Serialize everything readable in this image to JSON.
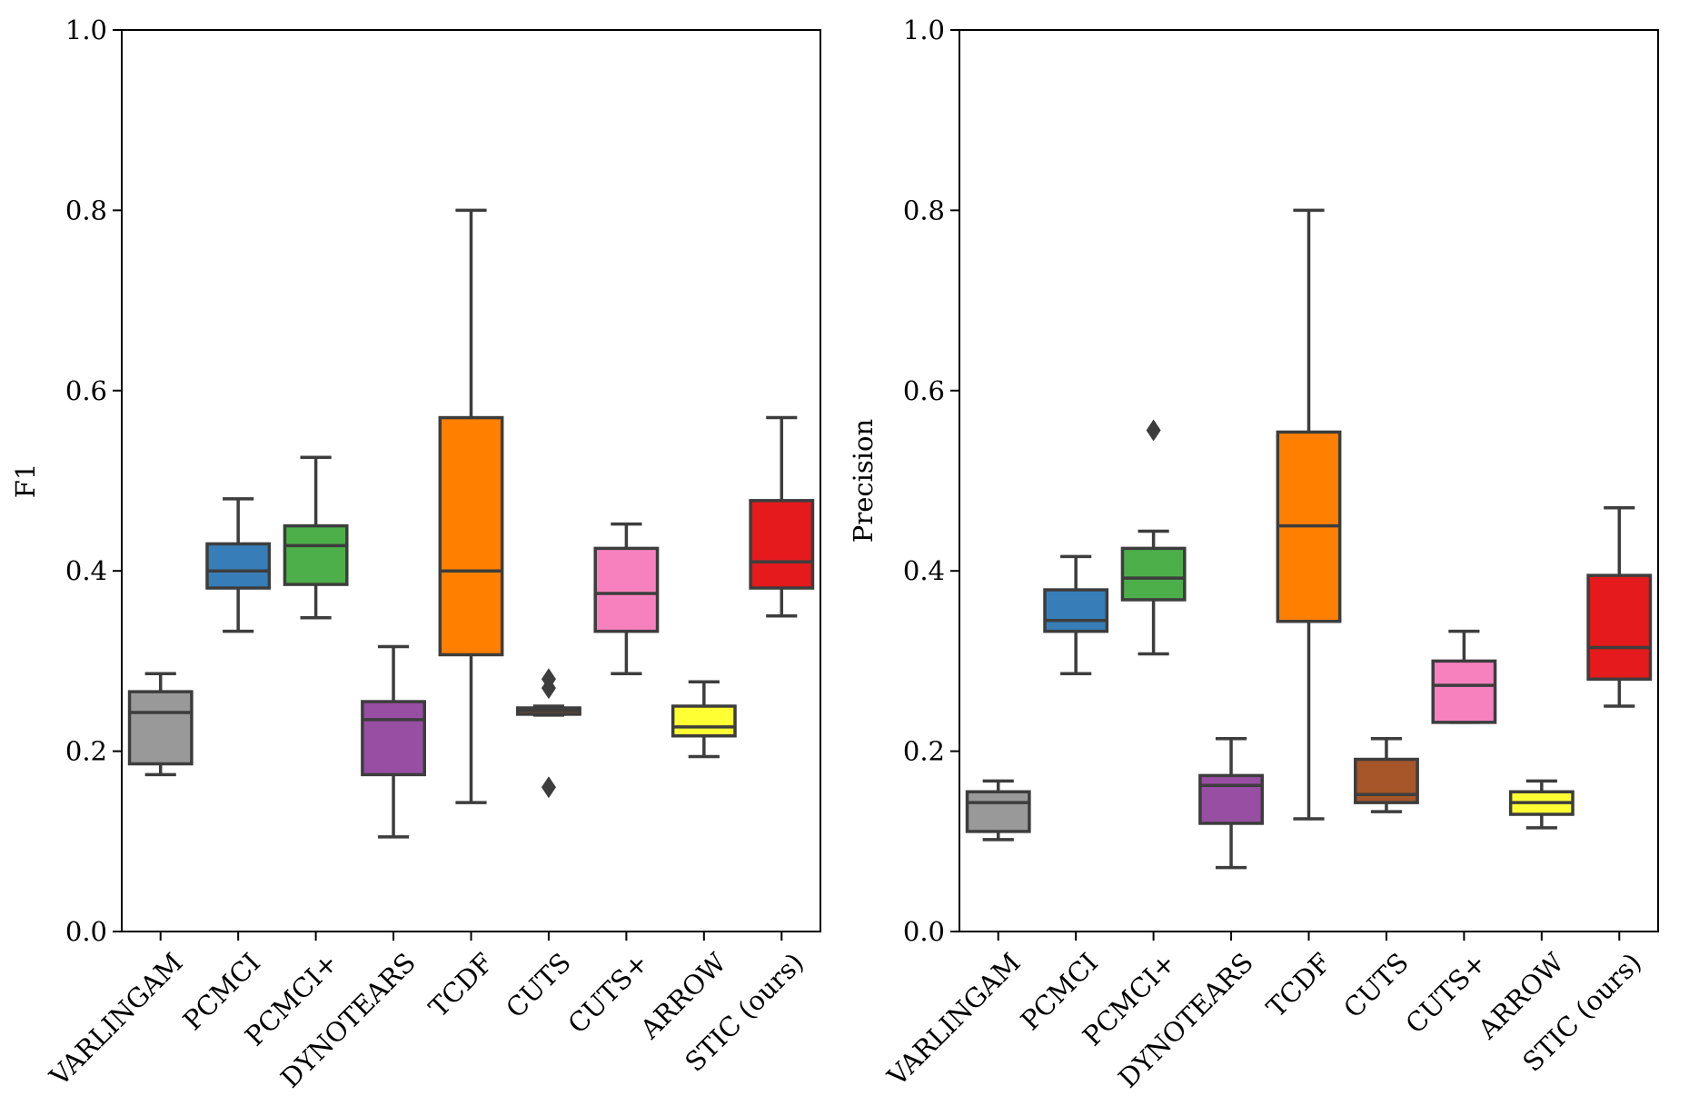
{
  "chart_data": [
    {
      "type": "box",
      "ylabel": "F1",
      "xlabel": "",
      "ylim": [
        0.0,
        1.0
      ],
      "yticks": [
        "0.0",
        "0.2",
        "0.4",
        "0.6",
        "0.8",
        "1.0"
      ],
      "ytick_values": [
        0.0,
        0.2,
        0.4,
        0.6,
        0.8,
        1.0
      ],
      "grid": false,
      "categories": [
        "VARLINGAM",
        "PCMCI",
        "PCMCI+",
        "DYNOTEARS",
        "TCDF",
        "CUTS",
        "CUTS+",
        "ARROW",
        "STIC (ours)"
      ],
      "boxes": [
        {
          "name": "VARLINGAM",
          "color": "#999999",
          "whisker_low": 0.174,
          "q1": 0.186,
          "median": 0.243,
          "q3": 0.266,
          "whisker_high": 0.286,
          "outliers": []
        },
        {
          "name": "PCMCI",
          "color": "#377eb8",
          "whisker_low": 0.333,
          "q1": 0.381,
          "median": 0.4,
          "q3": 0.43,
          "whisker_high": 0.48,
          "outliers": []
        },
        {
          "name": "PCMCI+",
          "color": "#4daf4a",
          "whisker_low": 0.348,
          "q1": 0.385,
          "median": 0.428,
          "q3": 0.45,
          "whisker_high": 0.526,
          "outliers": []
        },
        {
          "name": "DYNOTEARS",
          "color": "#984ea3",
          "whisker_low": 0.105,
          "q1": 0.174,
          "median": 0.235,
          "q3": 0.255,
          "whisker_high": 0.316,
          "outliers": []
        },
        {
          "name": "TCDF",
          "color": "#ff7f00",
          "whisker_low": 0.143,
          "q1": 0.307,
          "median": 0.4,
          "q3": 0.57,
          "whisker_high": 0.8,
          "outliers": []
        },
        {
          "name": "CUTS",
          "color": "#a65628",
          "whisker_low": 0.24,
          "q1": 0.241,
          "median": 0.245,
          "q3": 0.248,
          "whisker_high": 0.25,
          "outliers": [
            0.16,
            0.27,
            0.28
          ]
        },
        {
          "name": "CUTS+",
          "color": "#f781bf",
          "whisker_low": 0.286,
          "q1": 0.333,
          "median": 0.375,
          "q3": 0.425,
          "whisker_high": 0.452,
          "outliers": []
        },
        {
          "name": "ARROW",
          "color": "#ffff33",
          "whisker_low": 0.194,
          "q1": 0.217,
          "median": 0.227,
          "q3": 0.25,
          "whisker_high": 0.277,
          "outliers": []
        },
        {
          "name": "STIC (ours)",
          "color": "#e41a1c",
          "whisker_low": 0.35,
          "q1": 0.381,
          "median": 0.41,
          "q3": 0.478,
          "whisker_high": 0.57,
          "outliers": []
        }
      ]
    },
    {
      "type": "box",
      "ylabel": "Precision",
      "xlabel": "",
      "ylim": [
        0.0,
        1.0
      ],
      "yticks": [
        "0.0",
        "0.2",
        "0.4",
        "0.6",
        "0.8",
        "1.0"
      ],
      "ytick_values": [
        0.0,
        0.2,
        0.4,
        0.6,
        0.8,
        1.0
      ],
      "grid": false,
      "categories": [
        "VARLINGAM",
        "PCMCI",
        "PCMCI+",
        "DYNOTEARS",
        "TCDF",
        "CUTS",
        "CUTS+",
        "ARROW",
        "STIC (ours)"
      ],
      "boxes": [
        {
          "name": "VARLINGAM",
          "color": "#999999",
          "whisker_low": 0.102,
          "q1": 0.111,
          "median": 0.143,
          "q3": 0.155,
          "whisker_high": 0.167,
          "outliers": []
        },
        {
          "name": "PCMCI",
          "color": "#377eb8",
          "whisker_low": 0.286,
          "q1": 0.333,
          "median": 0.345,
          "q3": 0.379,
          "whisker_high": 0.416,
          "outliers": []
        },
        {
          "name": "PCMCI+",
          "color": "#4daf4a",
          "whisker_low": 0.308,
          "q1": 0.368,
          "median": 0.392,
          "q3": 0.425,
          "whisker_high": 0.444,
          "outliers": [
            0.556
          ]
        },
        {
          "name": "DYNOTEARS",
          "color": "#984ea3",
          "whisker_low": 0.071,
          "q1": 0.12,
          "median": 0.162,
          "q3": 0.173,
          "whisker_high": 0.214,
          "outliers": []
        },
        {
          "name": "TCDF",
          "color": "#ff7f00",
          "whisker_low": 0.125,
          "q1": 0.344,
          "median": 0.45,
          "q3": 0.554,
          "whisker_high": 0.8,
          "outliers": []
        },
        {
          "name": "CUTS",
          "color": "#a65628",
          "whisker_low": 0.133,
          "q1": 0.143,
          "median": 0.152,
          "q3": 0.191,
          "whisker_high": 0.214,
          "outliers": []
        },
        {
          "name": "CUTS+",
          "color": "#f781bf",
          "whisker_low": 0.232,
          "q1": 0.232,
          "median": 0.273,
          "q3": 0.3,
          "whisker_high": 0.333,
          "outliers": []
        },
        {
          "name": "ARROW",
          "color": "#ffff33",
          "whisker_low": 0.115,
          "q1": 0.13,
          "median": 0.143,
          "q3": 0.155,
          "whisker_high": 0.167,
          "outliers": []
        },
        {
          "name": "STIC (ours)",
          "color": "#e41a1c",
          "whisker_low": 0.25,
          "q1": 0.28,
          "median": 0.315,
          "q3": 0.395,
          "whisker_high": 0.47,
          "outliers": []
        }
      ]
    }
  ]
}
